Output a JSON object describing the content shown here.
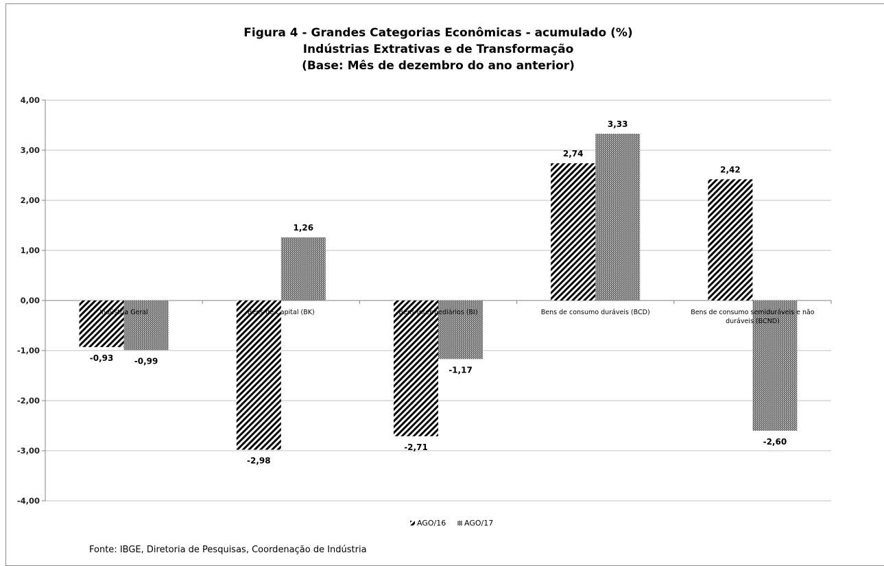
{
  "chart_data": {
    "type": "bar",
    "title": [
      "Figura 4 - Grandes Categorias Econômicas - acumulado (%)",
      "Indústrias Extrativas e de Transformação",
      "(Base: Mês de dezembro do ano anterior)"
    ],
    "categories": [
      [
        "Indústria Geral"
      ],
      [
        "Bens de Capital (BK)"
      ],
      [
        "Bens Intermediários (BI)"
      ],
      [
        "Bens de consumo duráveis (BCD)"
      ],
      [
        "Bens de consumo semiduráveis e não",
        "duráveis (BCND)"
      ]
    ],
    "series": [
      {
        "name": "AGO/16",
        "values": [
          -0.93,
          -2.98,
          -2.71,
          2.74,
          2.42
        ],
        "labels": [
          "-0,93",
          "-2,98",
          "-2,71",
          "2,74",
          "2,42"
        ],
        "pattern": "diagonal-stripes"
      },
      {
        "name": "AGO/17",
        "values": [
          -0.99,
          1.26,
          -1.17,
          3.33,
          -2.6
        ],
        "labels": [
          "-0,99",
          "1,26",
          "-1,17",
          "3,33",
          "-2,60"
        ],
        "pattern": "dense-crosshatch"
      }
    ],
    "ylim": [
      -4,
      4
    ],
    "yticks": [
      4,
      3,
      2,
      1,
      0,
      -1,
      -2,
      -3,
      -4
    ],
    "ytick_labels": [
      "4,00",
      "3,00",
      "2,00",
      "1,00",
      "0,00",
      "-1,00",
      "-2,00",
      "-3,00",
      "-4,00"
    ],
    "xlabel": "",
    "ylabel": "",
    "grid": true,
    "legend_position": "bottom-center",
    "colors": {
      "bar_fill": "#000000",
      "grid": "#c0c0c0",
      "axis": "#808080"
    }
  },
  "source_note": "Fonte: IBGE, Diretoria de Pesquisas, Coordenação de Indústria"
}
